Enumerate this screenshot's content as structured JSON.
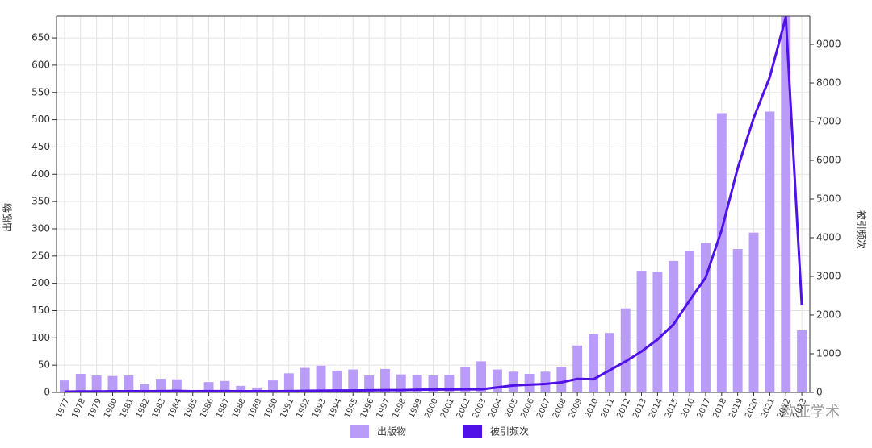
{
  "chart_data": {
    "type": "bar_line",
    "categories": [
      "1977",
      "1978",
      "1979",
      "1980",
      "1981",
      "1982",
      "1983",
      "1984",
      "1985",
      "1986",
      "1987",
      "1988",
      "1989",
      "1990",
      "1991",
      "1992",
      "1993",
      "1994",
      "1995",
      "1996",
      "1997",
      "1998",
      "1999",
      "2000",
      "2001",
      "2002",
      "2003",
      "2004",
      "2005",
      "2006",
      "2007",
      "2008",
      "2009",
      "2010",
      "2011",
      "2012",
      "2013",
      "2014",
      "2015",
      "2016",
      "2017",
      "2018",
      "2019",
      "2020",
      "2021",
      "2022",
      "2023"
    ],
    "series": [
      {
        "name": "出版物",
        "type": "bar",
        "color": "#b89cf8",
        "axis": "y",
        "values": [
          22,
          34,
          31,
          30,
          31,
          15,
          25,
          24,
          1,
          19,
          21,
          12,
          9,
          22,
          35,
          45,
          49,
          40,
          42,
          31,
          43,
          33,
          32,
          31,
          32,
          46,
          57,
          42,
          38,
          34,
          38,
          47,
          86,
          107,
          109,
          154,
          223,
          221,
          241,
          259,
          274,
          512,
          263,
          293,
          515,
          690,
          114
        ]
      },
      {
        "name": "被引频次",
        "type": "line",
        "color": "#5010e8",
        "axis": "y2",
        "values": [
          20,
          25,
          25,
          30,
          30,
          30,
          35,
          40,
          30,
          35,
          35,
          30,
          30,
          30,
          35,
          40,
          45,
          50,
          50,
          55,
          60,
          60,
          70,
          75,
          75,
          80,
          80,
          130,
          180,
          200,
          220,
          260,
          350,
          340,
          570,
          800,
          1060,
          1370,
          1760,
          2380,
          2970,
          4200,
          5800,
          7100,
          8150,
          9700,
          2250
        ]
      }
    ],
    "ylabel": "出版物",
    "y2label": "被引频次",
    "ylim": [
      0,
      690
    ],
    "yticks": [
      0,
      50,
      100,
      150,
      200,
      250,
      300,
      350,
      400,
      450,
      500,
      550,
      600,
      650
    ],
    "y2lim": [
      0,
      9730
    ],
    "y2ticks": [
      0,
      1000,
      2000,
      3000,
      4000,
      5000,
      6000,
      7000,
      8000,
      9000
    ],
    "grid": true,
    "legend": "bottom",
    "watermark": "欧亚学术"
  }
}
